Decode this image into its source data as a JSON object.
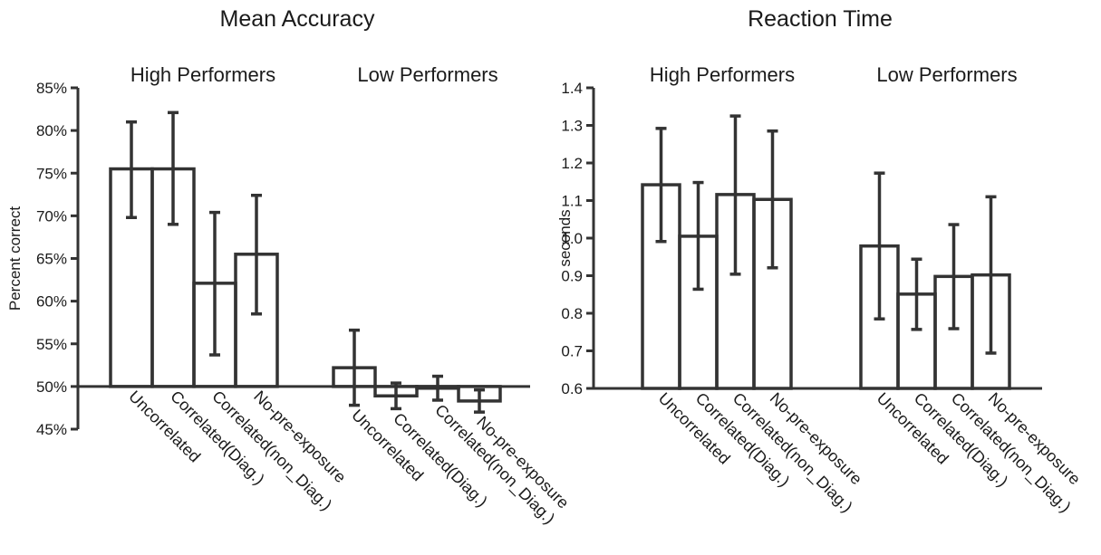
{
  "colors": {
    "ink": "#333333",
    "background": "#ffffff"
  },
  "chart_data": [
    {
      "type": "bar",
      "title": "Mean Accuracy",
      "ylabel": "Percent correct",
      "xlabel": "",
      "ylim": [
        0.45,
        0.85
      ],
      "baseline": 0.5,
      "yticks": [
        0.45,
        0.5,
        0.55,
        0.6,
        0.65,
        0.7,
        0.75,
        0.8,
        0.85
      ],
      "ytick_labels": [
        "45%",
        "50%",
        "55%",
        "60%",
        "65%",
        "70%",
        "75%",
        "80%",
        "85%"
      ],
      "grid": false,
      "groups": [
        {
          "name": "High Performers",
          "categories": [
            "Uncorrelated",
            "Correlated(Diag.)",
            "Correlated(non_Diag.)",
            "No-pre-exposure"
          ],
          "values": [
            0.755,
            0.755,
            0.621,
            0.655
          ],
          "err_low": [
            0.698,
            0.69,
            0.537,
            0.585
          ],
          "err_high": [
            0.81,
            0.821,
            0.704,
            0.724
          ]
        },
        {
          "name": "Low Performers",
          "categories": [
            "Uncorrelated",
            "Correlated(Diag.)",
            "Correlated(non_Diag.)",
            "No-pre-exposure"
          ],
          "values": [
            0.522,
            0.489,
            0.498,
            0.483
          ],
          "err_low": [
            0.478,
            0.474,
            0.484,
            0.47
          ],
          "err_high": [
            0.566,
            0.504,
            0.512,
            0.496
          ]
        }
      ]
    },
    {
      "type": "bar",
      "title": "Reaction Time",
      "ylabel": "seconds",
      "xlabel": "",
      "ylim": [
        0.6,
        1.4
      ],
      "baseline": 0.6,
      "yticks": [
        0.6,
        0.7,
        0.8,
        0.9,
        1.0,
        1.1,
        1.2,
        1.3,
        1.4
      ],
      "ytick_labels": [
        "0.6",
        "0.7",
        "0.8",
        "0.9",
        "1.0",
        "1.1",
        "1.2",
        "1.3",
        "1.4"
      ],
      "grid": false,
      "groups": [
        {
          "name": "High Performers",
          "categories": [
            "Uncorrelated",
            "Correlated(Diag.)",
            "Correlated(non_Diag.)",
            "No-pre-exposure"
          ],
          "values": [
            1.142,
            1.005,
            1.116,
            1.103
          ],
          "err_low": [
            0.991,
            0.864,
            0.904,
            0.921
          ],
          "err_high": [
            1.292,
            1.148,
            1.325,
            1.285
          ]
        },
        {
          "name": "Low Performers",
          "categories": [
            "Uncorrelated",
            "Correlated(Diag.)",
            "Correlated(non_Diag.)",
            "No-pre-exposure"
          ],
          "values": [
            0.979,
            0.851,
            0.898,
            0.902
          ],
          "err_low": [
            0.785,
            0.757,
            0.759,
            0.694
          ],
          "err_high": [
            1.173,
            0.944,
            1.036,
            1.11
          ]
        }
      ]
    }
  ]
}
